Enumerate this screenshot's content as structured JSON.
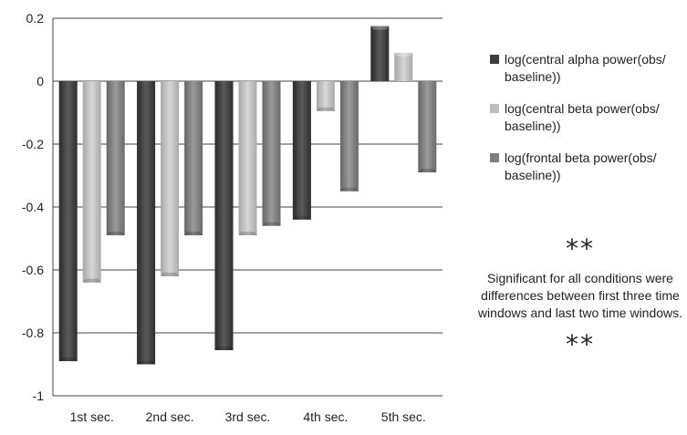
{
  "chart_data": {
    "type": "bar",
    "categories": [
      "1st sec.",
      "2nd sec.",
      "3rd sec.",
      "4th sec.",
      "5th sec."
    ],
    "series": [
      {
        "name": "log(central alpha power(obs/ baseline))",
        "values": [
          -0.89,
          -0.9,
          -0.855,
          -0.44,
          0.175
        ]
      },
      {
        "name": "log(central beta power(obs/ baseline))",
        "values": [
          -0.64,
          -0.62,
          -0.49,
          -0.095,
          0.09
        ]
      },
      {
        "name": "log(frontal beta power(obs/ baseline))",
        "values": [
          -0.49,
          -0.49,
          -0.46,
          -0.35,
          -0.29
        ]
      }
    ],
    "ylim": [
      -1,
      0.2
    ],
    "yticks": [
      "0.2",
      "0",
      "-0.2",
      "-0.4",
      "-0.6",
      "-0.8",
      "-1"
    ],
    "ytick_values": [
      0.2,
      0,
      -0.2,
      -0.4,
      -0.6,
      -0.8,
      -1
    ],
    "grid": true,
    "legend_position": "right",
    "colors": [
      "#3c3c3c",
      "#bdbdbd",
      "#7d7d7d"
    ],
    "title": "",
    "xlabel": "",
    "ylabel": ""
  },
  "annotation": {
    "stars_top": "**",
    "text": "Significant for all conditions were differences between first three time windows and last two time windows.",
    "stars_bottom": "**"
  }
}
